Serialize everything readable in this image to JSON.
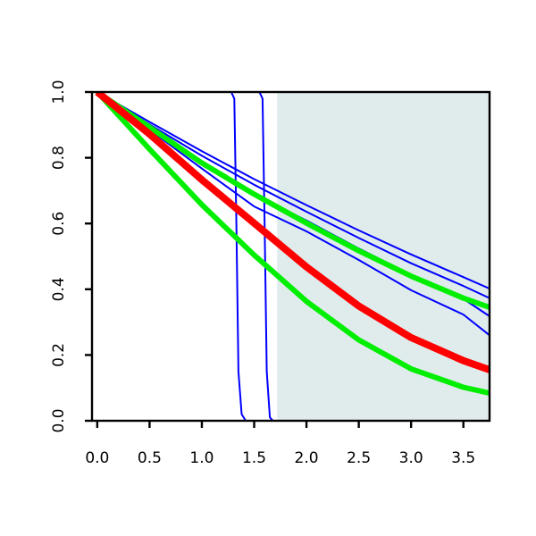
{
  "chart_data": {
    "type": "line",
    "title": "",
    "xlabel": "",
    "ylabel": "",
    "xlim": [
      -0.05,
      3.75
    ],
    "ylim": [
      0,
      1
    ],
    "x_ticks": [
      "0.0",
      "0.5",
      "1.0",
      "1.5",
      "2.0",
      "2.5",
      "3.0",
      "3.5"
    ],
    "y_ticks": [
      "0.0",
      "0.2",
      "0.4",
      "0.6",
      "0.8",
      "1.0"
    ],
    "grid": false,
    "shaded_region": {
      "x_from": 1.72,
      "x_to": 3.75,
      "color": "#e0ecec"
    },
    "colors": {
      "blue": "#0000ff",
      "red": "#ff0000",
      "green": "#00ee00"
    },
    "series": [
      {
        "color": "blue",
        "width": 2,
        "points": [
          [
            0,
            1
          ],
          [
            0.5,
            0.885
          ],
          [
            1.0,
            0.767
          ],
          [
            1.5,
            0.652
          ],
          [
            2.0,
            0.576
          ],
          [
            2.5,
            0.489
          ],
          [
            3.0,
            0.397
          ],
          [
            3.5,
            0.323
          ],
          [
            3.75,
            0.26
          ]
        ]
      },
      {
        "color": "blue",
        "width": 2,
        "points": [
          [
            0,
            1
          ],
          [
            0.5,
            0.892
          ],
          [
            1.0,
            0.786
          ],
          [
            1.5,
            0.688
          ],
          [
            2.0,
            0.609
          ],
          [
            2.5,
            0.524
          ],
          [
            3.0,
            0.444
          ],
          [
            3.5,
            0.371
          ],
          [
            3.75,
            0.318
          ]
        ]
      },
      {
        "color": "blue",
        "width": 2,
        "points": [
          [
            0,
            1
          ],
          [
            0.5,
            0.901
          ],
          [
            1.0,
            0.806
          ],
          [
            1.5,
            0.718
          ],
          [
            2.0,
            0.636
          ],
          [
            2.5,
            0.556
          ],
          [
            3.0,
            0.479
          ],
          [
            3.5,
            0.41
          ],
          [
            3.75,
            0.373
          ]
        ]
      },
      {
        "color": "blue",
        "width": 2,
        "points": [
          [
            0,
            1
          ],
          [
            0.5,
            0.909
          ],
          [
            1.0,
            0.82
          ],
          [
            1.5,
            0.735
          ],
          [
            2.0,
            0.656
          ],
          [
            2.5,
            0.579
          ],
          [
            3.0,
            0.506
          ],
          [
            3.5,
            0.437
          ],
          [
            3.75,
            0.402
          ]
        ]
      },
      {
        "color": "blue",
        "width": 2,
        "points": [
          [
            0,
            1
          ],
          [
            0.5,
            0.877
          ],
          [
            1.0,
            0.743
          ],
          [
            1.5,
            0.602
          ],
          [
            2.0,
            0.463
          ],
          [
            2.5,
            0.343
          ],
          [
            3.0,
            0.247
          ],
          [
            3.5,
            0.179
          ],
          [
            3.75,
            0.162
          ]
        ]
      },
      {
        "color": "blue",
        "width": 2,
        "points": [
          [
            -0.05,
            1
          ],
          [
            1.28,
            1
          ],
          [
            1.31,
            0.98
          ],
          [
            1.33,
            0.6
          ],
          [
            1.35,
            0.15
          ],
          [
            1.38,
            0.02
          ],
          [
            1.42,
            0
          ],
          [
            3.75,
            0
          ]
        ]
      },
      {
        "color": "blue",
        "width": 2,
        "points": [
          [
            -0.05,
            1
          ],
          [
            1.55,
            1
          ],
          [
            1.58,
            0.98
          ],
          [
            1.6,
            0.6
          ],
          [
            1.62,
            0.15
          ],
          [
            1.65,
            0.01
          ],
          [
            1.68,
            0
          ],
          [
            3.75,
            0
          ]
        ]
      },
      {
        "color": "green",
        "width": 6,
        "points": [
          [
            0,
            1
          ],
          [
            0.5,
            0.893
          ],
          [
            1.0,
            0.784
          ],
          [
            1.5,
            0.689
          ],
          [
            2.0,
            0.601
          ],
          [
            2.5,
            0.517
          ],
          [
            3.0,
            0.44
          ],
          [
            3.5,
            0.373
          ],
          [
            3.75,
            0.345
          ]
        ]
      },
      {
        "color": "green",
        "width": 6,
        "points": [
          [
            0,
            1
          ],
          [
            0.5,
            0.826
          ],
          [
            1.0,
            0.657
          ],
          [
            1.5,
            0.504
          ],
          [
            2.0,
            0.363
          ],
          [
            2.5,
            0.246
          ],
          [
            3.0,
            0.158
          ],
          [
            3.5,
            0.102
          ],
          [
            3.75,
            0.084
          ]
        ]
      },
      {
        "color": "red",
        "width": 8,
        "points": [
          [
            0,
            1
          ],
          [
            0.5,
            0.872
          ],
          [
            1.0,
            0.733
          ],
          [
            1.5,
            0.601
          ],
          [
            2.0,
            0.468
          ],
          [
            2.5,
            0.349
          ],
          [
            3.0,
            0.253
          ],
          [
            3.5,
            0.183
          ],
          [
            3.75,
            0.155
          ]
        ]
      }
    ]
  }
}
